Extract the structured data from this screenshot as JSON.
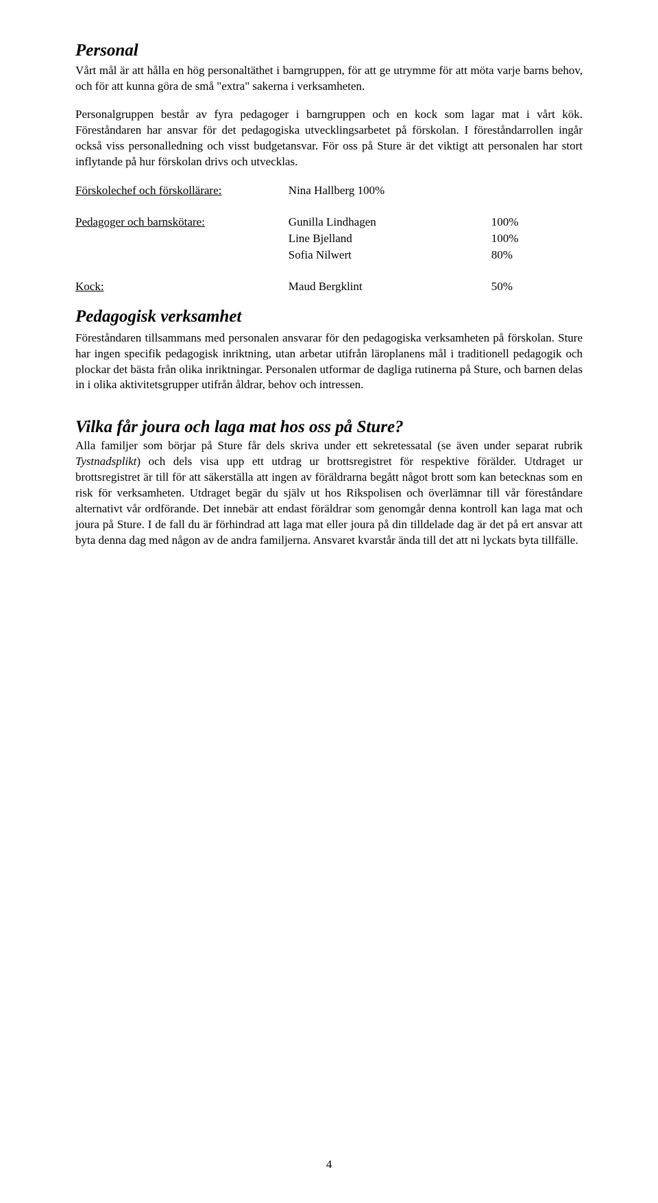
{
  "section1": {
    "title": "Personal",
    "para1": "Vårt mål är att hålla en hög personaltäthet i barngruppen, för att ge utrymme för att möta varje barns behov, och för att kunna göra de små \"extra\" sakerna i verksamheten.",
    "para2": "Personalgruppen består av fyra pedagoger i barngruppen och en kock som lagar mat i vårt kök. Föreståndaren har ansvar för det pedagogiska utvecklingsarbetet på förskolan. I föreståndarrollen ingår också viss personalledning och visst budgetansvar. För oss på Sture är det viktigt att personalen har stort inflytande på hur förskolan drivs och utvecklas."
  },
  "staff": {
    "row1_label": "Förskolechef och förskollärare:",
    "row1_name": "Nina Hallberg 100%",
    "row2_label": "Pedagoger och barnskötare:",
    "row2_name": "Gunilla Lindhagen",
    "row2_pct": "100%",
    "row3_name": "Line Bjelland",
    "row3_pct": "100%",
    "row4_name": "Sofia Nilwert",
    "row4_pct": "80%",
    "row5_label": "Kock:",
    "row5_name": "Maud Bergklint",
    "row5_pct": "50%"
  },
  "section2": {
    "title": "Pedagogisk verksamhet",
    "para": "Föreståndaren tillsammans med personalen ansvarar för den pedagogiska verksamheten på förskolan. Sture har ingen specifik pedagogisk inriktning, utan arbetar utifrån läroplanens mål i traditionell pedagogik och plockar det bästa från olika inriktningar. Personalen utformar de dagliga rutinerna på Sture, och barnen delas in i olika aktivitetsgrupper utifrån åldrar, behov och intressen."
  },
  "section3": {
    "title": "Vilka får joura och laga mat hos oss på Sture?",
    "para_a": "Alla familjer som börjar på Sture får dels skriva under ett sekretessatal (se även under separat rubrik ",
    "para_italic": "Tystnadsplikt",
    "para_b": ") och dels visa upp ett utdrag ur brottsregistret för respektive förälder. Utdraget ur brottsregistret är till för att säkerställa att ingen av föräldrarna begått något brott som kan betecknas som en risk för verksamheten. Utdraget begär du själv ut hos Rikspolisen och överlämnar till vår föreståndare alternativt vår ordförande. Det innebär att endast föräldrar som genomgår denna kontroll kan laga mat och joura på Sture. I de fall du är förhindrad att laga mat eller joura på din tilldelade dag är det på ert ansvar att byta denna dag med någon av de andra familjerna. Ansvaret kvarstår ända till det att ni lyckats byta tillfälle."
  },
  "page_number": "4"
}
